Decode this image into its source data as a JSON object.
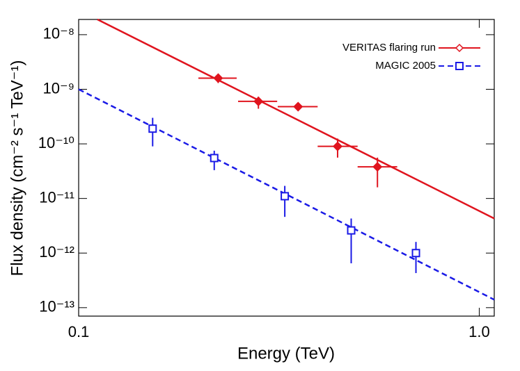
{
  "chart_data": {
    "type": "scatter",
    "xlabel": "Energy (TeV)",
    "ylabel": "Flux density (cm⁻² s⁻¹ TeV⁻¹)",
    "xscale": "log",
    "yscale": "log",
    "xlim": [
      0.1,
      1.09
    ],
    "ylim": [
      7e-14,
      1.9e-08
    ],
    "xticks": [
      0.1,
      {
        "value": 1,
        "label": "1.0"
      }
    ],
    "yticks": [
      {
        "value": 1e-08,
        "label": "10⁻⁸"
      },
      {
        "value": 1e-09,
        "label": "10⁻⁹"
      },
      {
        "value": 1e-10,
        "label": "10⁻¹⁰"
      },
      {
        "value": 1e-11,
        "label": "10⁻¹¹"
      },
      {
        "value": 1e-12,
        "label": "10⁻¹²"
      },
      {
        "value": 1e-13,
        "label": "10⁻¹³"
      }
    ],
    "legend": "upper right",
    "series": [
      {
        "name": "VERITAS flaring run",
        "color": "#e0141e",
        "marker": "diamond",
        "dashed": false,
        "x": [
          0.223,
          0.281,
          0.353,
          0.443,
          0.557
        ],
        "values": [
          1.6e-09,
          6e-10,
          4.8e-10,
          9e-11,
          3.8e-11
        ],
        "x_low": [
          0.199,
          0.25,
          0.314,
          0.395,
          0.497
        ],
        "x_high": [
          0.248,
          0.313,
          0.395,
          0.497,
          0.624
        ],
        "y_low": [
          1.3e-09,
          4.4e-10,
          4.1e-10,
          5.6e-11,
          1.6e-11
        ],
        "y_high": [
          1.8e-09,
          7.3e-10,
          5.7e-10,
          1.25e-10,
          5.6e-11
        ],
        "fit_x": [
          0.1114,
          1.09
        ],
        "fit_y": [
          1.9e-08,
          4.3e-12
        ]
      },
      {
        "name": "MAGIC 2005",
        "color": "#1a1ae6",
        "marker": "square",
        "dashed": true,
        "x": [
          0.153,
          0.218,
          0.327,
          0.479,
          0.695
        ],
        "values": [
          1.9e-10,
          5.5e-11,
          1.1e-11,
          2.6e-12,
          1e-12
        ],
        "y_low": [
          9e-11,
          3.3e-11,
          4.6e-12,
          6.5e-13,
          4.3e-13
        ],
        "y_high": [
          3e-10,
          7.5e-11,
          1.7e-11,
          4.3e-12,
          1.6e-12
        ],
        "fit_x": [
          0.1,
          1.09
        ],
        "fit_y": [
          1e-09,
          1.4e-13
        ]
      }
    ]
  }
}
